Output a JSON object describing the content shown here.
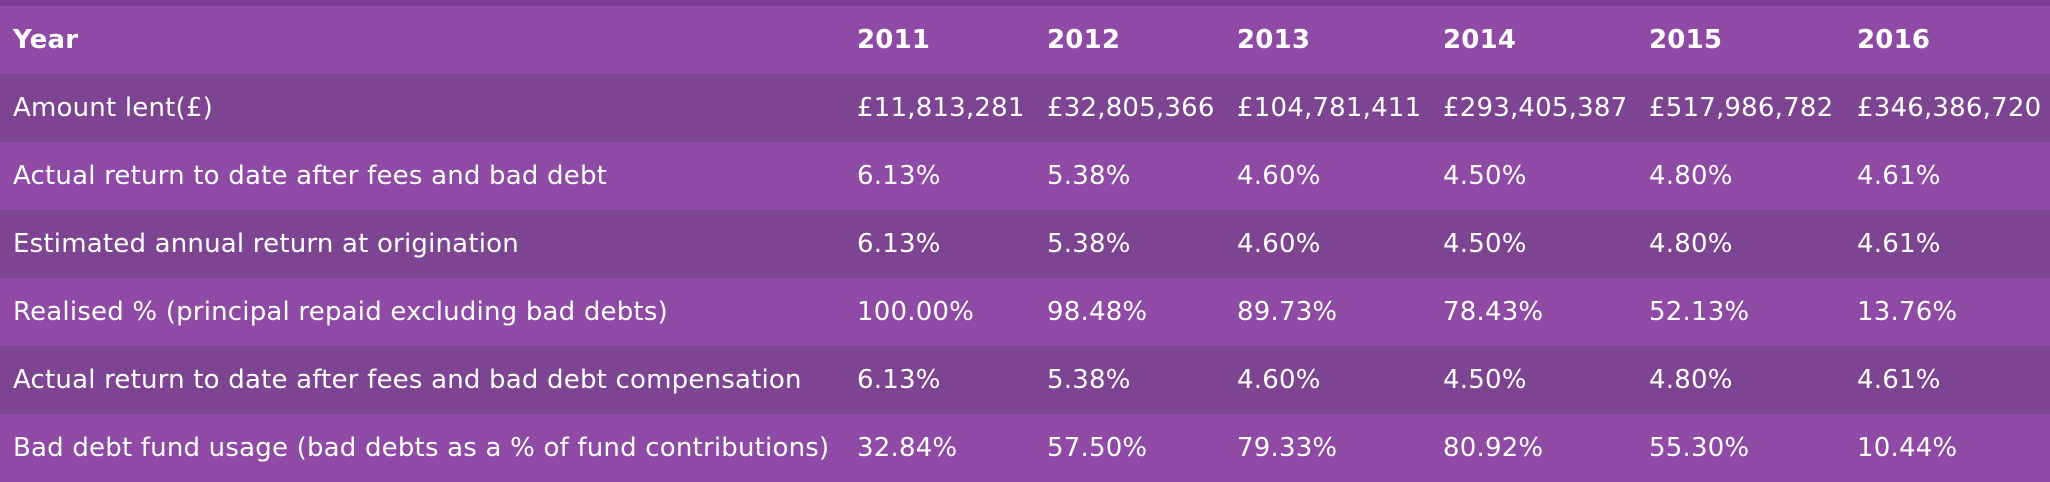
{
  "table": {
    "header": [
      "Year",
      "2011",
      "2012",
      "2013",
      "2014",
      "2015",
      "2016"
    ],
    "rows": [
      [
        "Amount lent(£)",
        "£11,813,281",
        "£32,805,366",
        "£104,781,411",
        "£293,405,387",
        "£517,986,782",
        "£346,386,720"
      ],
      [
        "Actual return to date after fees and bad debt",
        "6.13%",
        "5.38%",
        "4.60%",
        "4.50%",
        "4.80%",
        "4.61%"
      ],
      [
        "Estimated annual return at origination",
        "6.13%",
        "5.38%",
        "4.60%",
        "4.50%",
        "4.80%",
        "4.61%"
      ],
      [
        "Realised % (principal repaid excluding bad debts)",
        "100.00%",
        "98.48%",
        "89.73%",
        "78.43%",
        "52.13%",
        "13.76%"
      ],
      [
        "Actual return to date after fees and bad debt compensation",
        "6.13%",
        "5.38%",
        "4.60%",
        "4.50%",
        "4.80%",
        "4.61%"
      ],
      [
        "Bad debt fund usage (bad debts as a % of fund contributions)",
        "32.84%",
        "57.50%",
        "79.33%",
        "80.92%",
        "55.30%",
        "10.44%"
      ]
    ]
  },
  "colors": {
    "light_row": "#8e4aa4",
    "dark_row": "#7d4492",
    "text": "#ffffff"
  }
}
